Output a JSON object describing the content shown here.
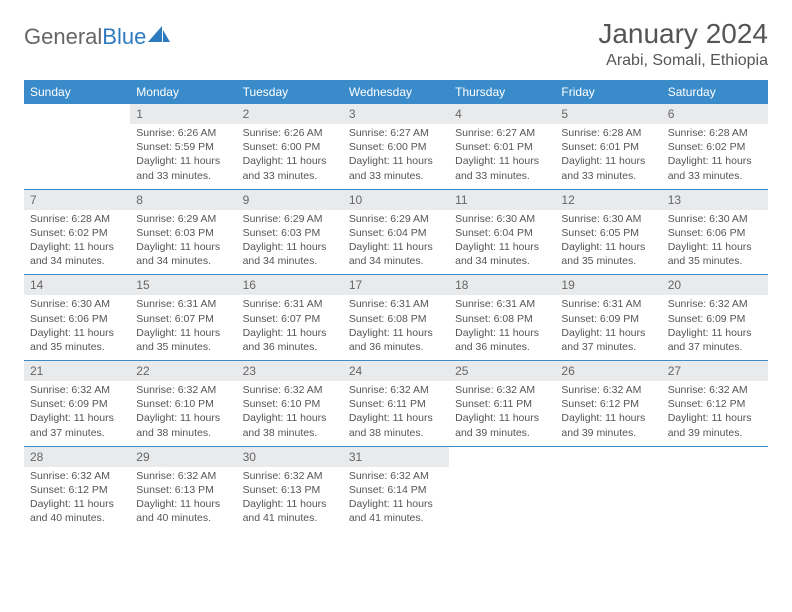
{
  "brand": {
    "part1": "General",
    "part2": "Blue"
  },
  "title": "January 2024",
  "location": "Arabi, Somali, Ethiopia",
  "header_color": "#3a8bc9",
  "daynum_bg": "#e9eaec",
  "text_color": "#555555",
  "dow": [
    "Sunday",
    "Monday",
    "Tuesday",
    "Wednesday",
    "Thursday",
    "Friday",
    "Saturday"
  ],
  "weeks": [
    {
      "nums": [
        "",
        "1",
        "2",
        "3",
        "4",
        "5",
        "6"
      ],
      "cells": [
        {
          "sr": "",
          "ss": "",
          "dl": ""
        },
        {
          "sr": "Sunrise: 6:26 AM",
          "ss": "Sunset: 5:59 PM",
          "dl": "Daylight: 11 hours and 33 minutes."
        },
        {
          "sr": "Sunrise: 6:26 AM",
          "ss": "Sunset: 6:00 PM",
          "dl": "Daylight: 11 hours and 33 minutes."
        },
        {
          "sr": "Sunrise: 6:27 AM",
          "ss": "Sunset: 6:00 PM",
          "dl": "Daylight: 11 hours and 33 minutes."
        },
        {
          "sr": "Sunrise: 6:27 AM",
          "ss": "Sunset: 6:01 PM",
          "dl": "Daylight: 11 hours and 33 minutes."
        },
        {
          "sr": "Sunrise: 6:28 AM",
          "ss": "Sunset: 6:01 PM",
          "dl": "Daylight: 11 hours and 33 minutes."
        },
        {
          "sr": "Sunrise: 6:28 AM",
          "ss": "Sunset: 6:02 PM",
          "dl": "Daylight: 11 hours and 33 minutes."
        }
      ]
    },
    {
      "nums": [
        "7",
        "8",
        "9",
        "10",
        "11",
        "12",
        "13"
      ],
      "cells": [
        {
          "sr": "Sunrise: 6:28 AM",
          "ss": "Sunset: 6:02 PM",
          "dl": "Daylight: 11 hours and 34 minutes."
        },
        {
          "sr": "Sunrise: 6:29 AM",
          "ss": "Sunset: 6:03 PM",
          "dl": "Daylight: 11 hours and 34 minutes."
        },
        {
          "sr": "Sunrise: 6:29 AM",
          "ss": "Sunset: 6:03 PM",
          "dl": "Daylight: 11 hours and 34 minutes."
        },
        {
          "sr": "Sunrise: 6:29 AM",
          "ss": "Sunset: 6:04 PM",
          "dl": "Daylight: 11 hours and 34 minutes."
        },
        {
          "sr": "Sunrise: 6:30 AM",
          "ss": "Sunset: 6:04 PM",
          "dl": "Daylight: 11 hours and 34 minutes."
        },
        {
          "sr": "Sunrise: 6:30 AM",
          "ss": "Sunset: 6:05 PM",
          "dl": "Daylight: 11 hours and 35 minutes."
        },
        {
          "sr": "Sunrise: 6:30 AM",
          "ss": "Sunset: 6:06 PM",
          "dl": "Daylight: 11 hours and 35 minutes."
        }
      ]
    },
    {
      "nums": [
        "14",
        "15",
        "16",
        "17",
        "18",
        "19",
        "20"
      ],
      "cells": [
        {
          "sr": "Sunrise: 6:30 AM",
          "ss": "Sunset: 6:06 PM",
          "dl": "Daylight: 11 hours and 35 minutes."
        },
        {
          "sr": "Sunrise: 6:31 AM",
          "ss": "Sunset: 6:07 PM",
          "dl": "Daylight: 11 hours and 35 minutes."
        },
        {
          "sr": "Sunrise: 6:31 AM",
          "ss": "Sunset: 6:07 PM",
          "dl": "Daylight: 11 hours and 36 minutes."
        },
        {
          "sr": "Sunrise: 6:31 AM",
          "ss": "Sunset: 6:08 PM",
          "dl": "Daylight: 11 hours and 36 minutes."
        },
        {
          "sr": "Sunrise: 6:31 AM",
          "ss": "Sunset: 6:08 PM",
          "dl": "Daylight: 11 hours and 36 minutes."
        },
        {
          "sr": "Sunrise: 6:31 AM",
          "ss": "Sunset: 6:09 PM",
          "dl": "Daylight: 11 hours and 37 minutes."
        },
        {
          "sr": "Sunrise: 6:32 AM",
          "ss": "Sunset: 6:09 PM",
          "dl": "Daylight: 11 hours and 37 minutes."
        }
      ]
    },
    {
      "nums": [
        "21",
        "22",
        "23",
        "24",
        "25",
        "26",
        "27"
      ],
      "cells": [
        {
          "sr": "Sunrise: 6:32 AM",
          "ss": "Sunset: 6:09 PM",
          "dl": "Daylight: 11 hours and 37 minutes."
        },
        {
          "sr": "Sunrise: 6:32 AM",
          "ss": "Sunset: 6:10 PM",
          "dl": "Daylight: 11 hours and 38 minutes."
        },
        {
          "sr": "Sunrise: 6:32 AM",
          "ss": "Sunset: 6:10 PM",
          "dl": "Daylight: 11 hours and 38 minutes."
        },
        {
          "sr": "Sunrise: 6:32 AM",
          "ss": "Sunset: 6:11 PM",
          "dl": "Daylight: 11 hours and 38 minutes."
        },
        {
          "sr": "Sunrise: 6:32 AM",
          "ss": "Sunset: 6:11 PM",
          "dl": "Daylight: 11 hours and 39 minutes."
        },
        {
          "sr": "Sunrise: 6:32 AM",
          "ss": "Sunset: 6:12 PM",
          "dl": "Daylight: 11 hours and 39 minutes."
        },
        {
          "sr": "Sunrise: 6:32 AM",
          "ss": "Sunset: 6:12 PM",
          "dl": "Daylight: 11 hours and 39 minutes."
        }
      ]
    },
    {
      "nums": [
        "28",
        "29",
        "30",
        "31",
        "",
        "",
        ""
      ],
      "cells": [
        {
          "sr": "Sunrise: 6:32 AM",
          "ss": "Sunset: 6:12 PM",
          "dl": "Daylight: 11 hours and 40 minutes."
        },
        {
          "sr": "Sunrise: 6:32 AM",
          "ss": "Sunset: 6:13 PM",
          "dl": "Daylight: 11 hours and 40 minutes."
        },
        {
          "sr": "Sunrise: 6:32 AM",
          "ss": "Sunset: 6:13 PM",
          "dl": "Daylight: 11 hours and 41 minutes."
        },
        {
          "sr": "Sunrise: 6:32 AM",
          "ss": "Sunset: 6:14 PM",
          "dl": "Daylight: 11 hours and 41 minutes."
        },
        {
          "sr": "",
          "ss": "",
          "dl": ""
        },
        {
          "sr": "",
          "ss": "",
          "dl": ""
        },
        {
          "sr": "",
          "ss": "",
          "dl": ""
        }
      ]
    }
  ]
}
